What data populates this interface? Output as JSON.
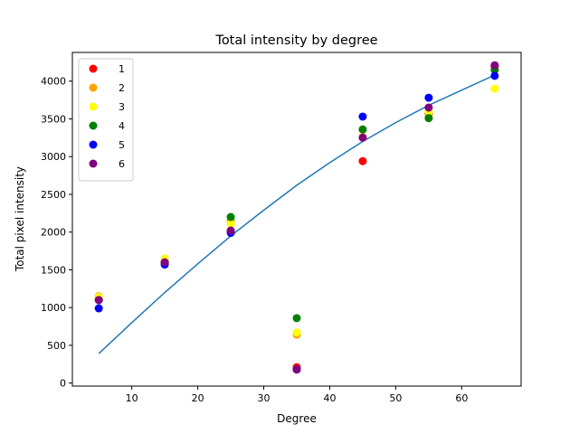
{
  "chart_data": {
    "type": "scatter",
    "title": "Total intensity by degree",
    "xlabel": "Degree",
    "ylabel": "Total pixel intensity",
    "xlim": [
      1,
      69
    ],
    "ylim": [
      -40,
      4380
    ],
    "xticks": [
      10,
      20,
      30,
      40,
      50,
      60
    ],
    "yticks": [
      0,
      500,
      1000,
      1500,
      2000,
      2500,
      3000,
      3500,
      4000
    ],
    "grid": false,
    "legend": "top-left",
    "x": [
      5,
      15,
      25,
      35,
      45,
      55,
      65
    ],
    "series": [
      {
        "name": "1",
        "color": "#ff0000",
        "values": [
          1110,
          1600,
          2010,
          210,
          2940,
          3570,
          4200
        ]
      },
      {
        "name": "2",
        "color": "#ffa500",
        "values": [
          1150,
          1620,
          2150,
          640,
          3260,
          3550,
          4150
        ]
      },
      {
        "name": "3",
        "color": "#ffff00",
        "values": [
          1140,
          1650,
          2110,
          670,
          3250,
          3600,
          3900
        ]
      },
      {
        "name": "4",
        "color": "#008000",
        "values": [
          1100,
          1590,
          2200,
          860,
          3360,
          3510,
          4150
        ]
      },
      {
        "name": "5",
        "color": "#0000ff",
        "values": [
          990,
          1570,
          1990,
          180,
          3530,
          3780,
          4070
        ]
      },
      {
        "name": "6",
        "color": "#800080",
        "values": [
          1100,
          1600,
          2020,
          180,
          3250,
          3650,
          4210
        ]
      }
    ],
    "fit_line": {
      "color": "#1f77b4",
      "x": [
        5,
        10,
        15,
        20,
        25,
        30,
        35,
        40,
        45,
        50,
        55,
        60,
        65
      ],
      "y": [
        390,
        800,
        1200,
        1580,
        1950,
        2290,
        2620,
        2920,
        3200,
        3450,
        3680,
        3880,
        4080
      ]
    }
  }
}
